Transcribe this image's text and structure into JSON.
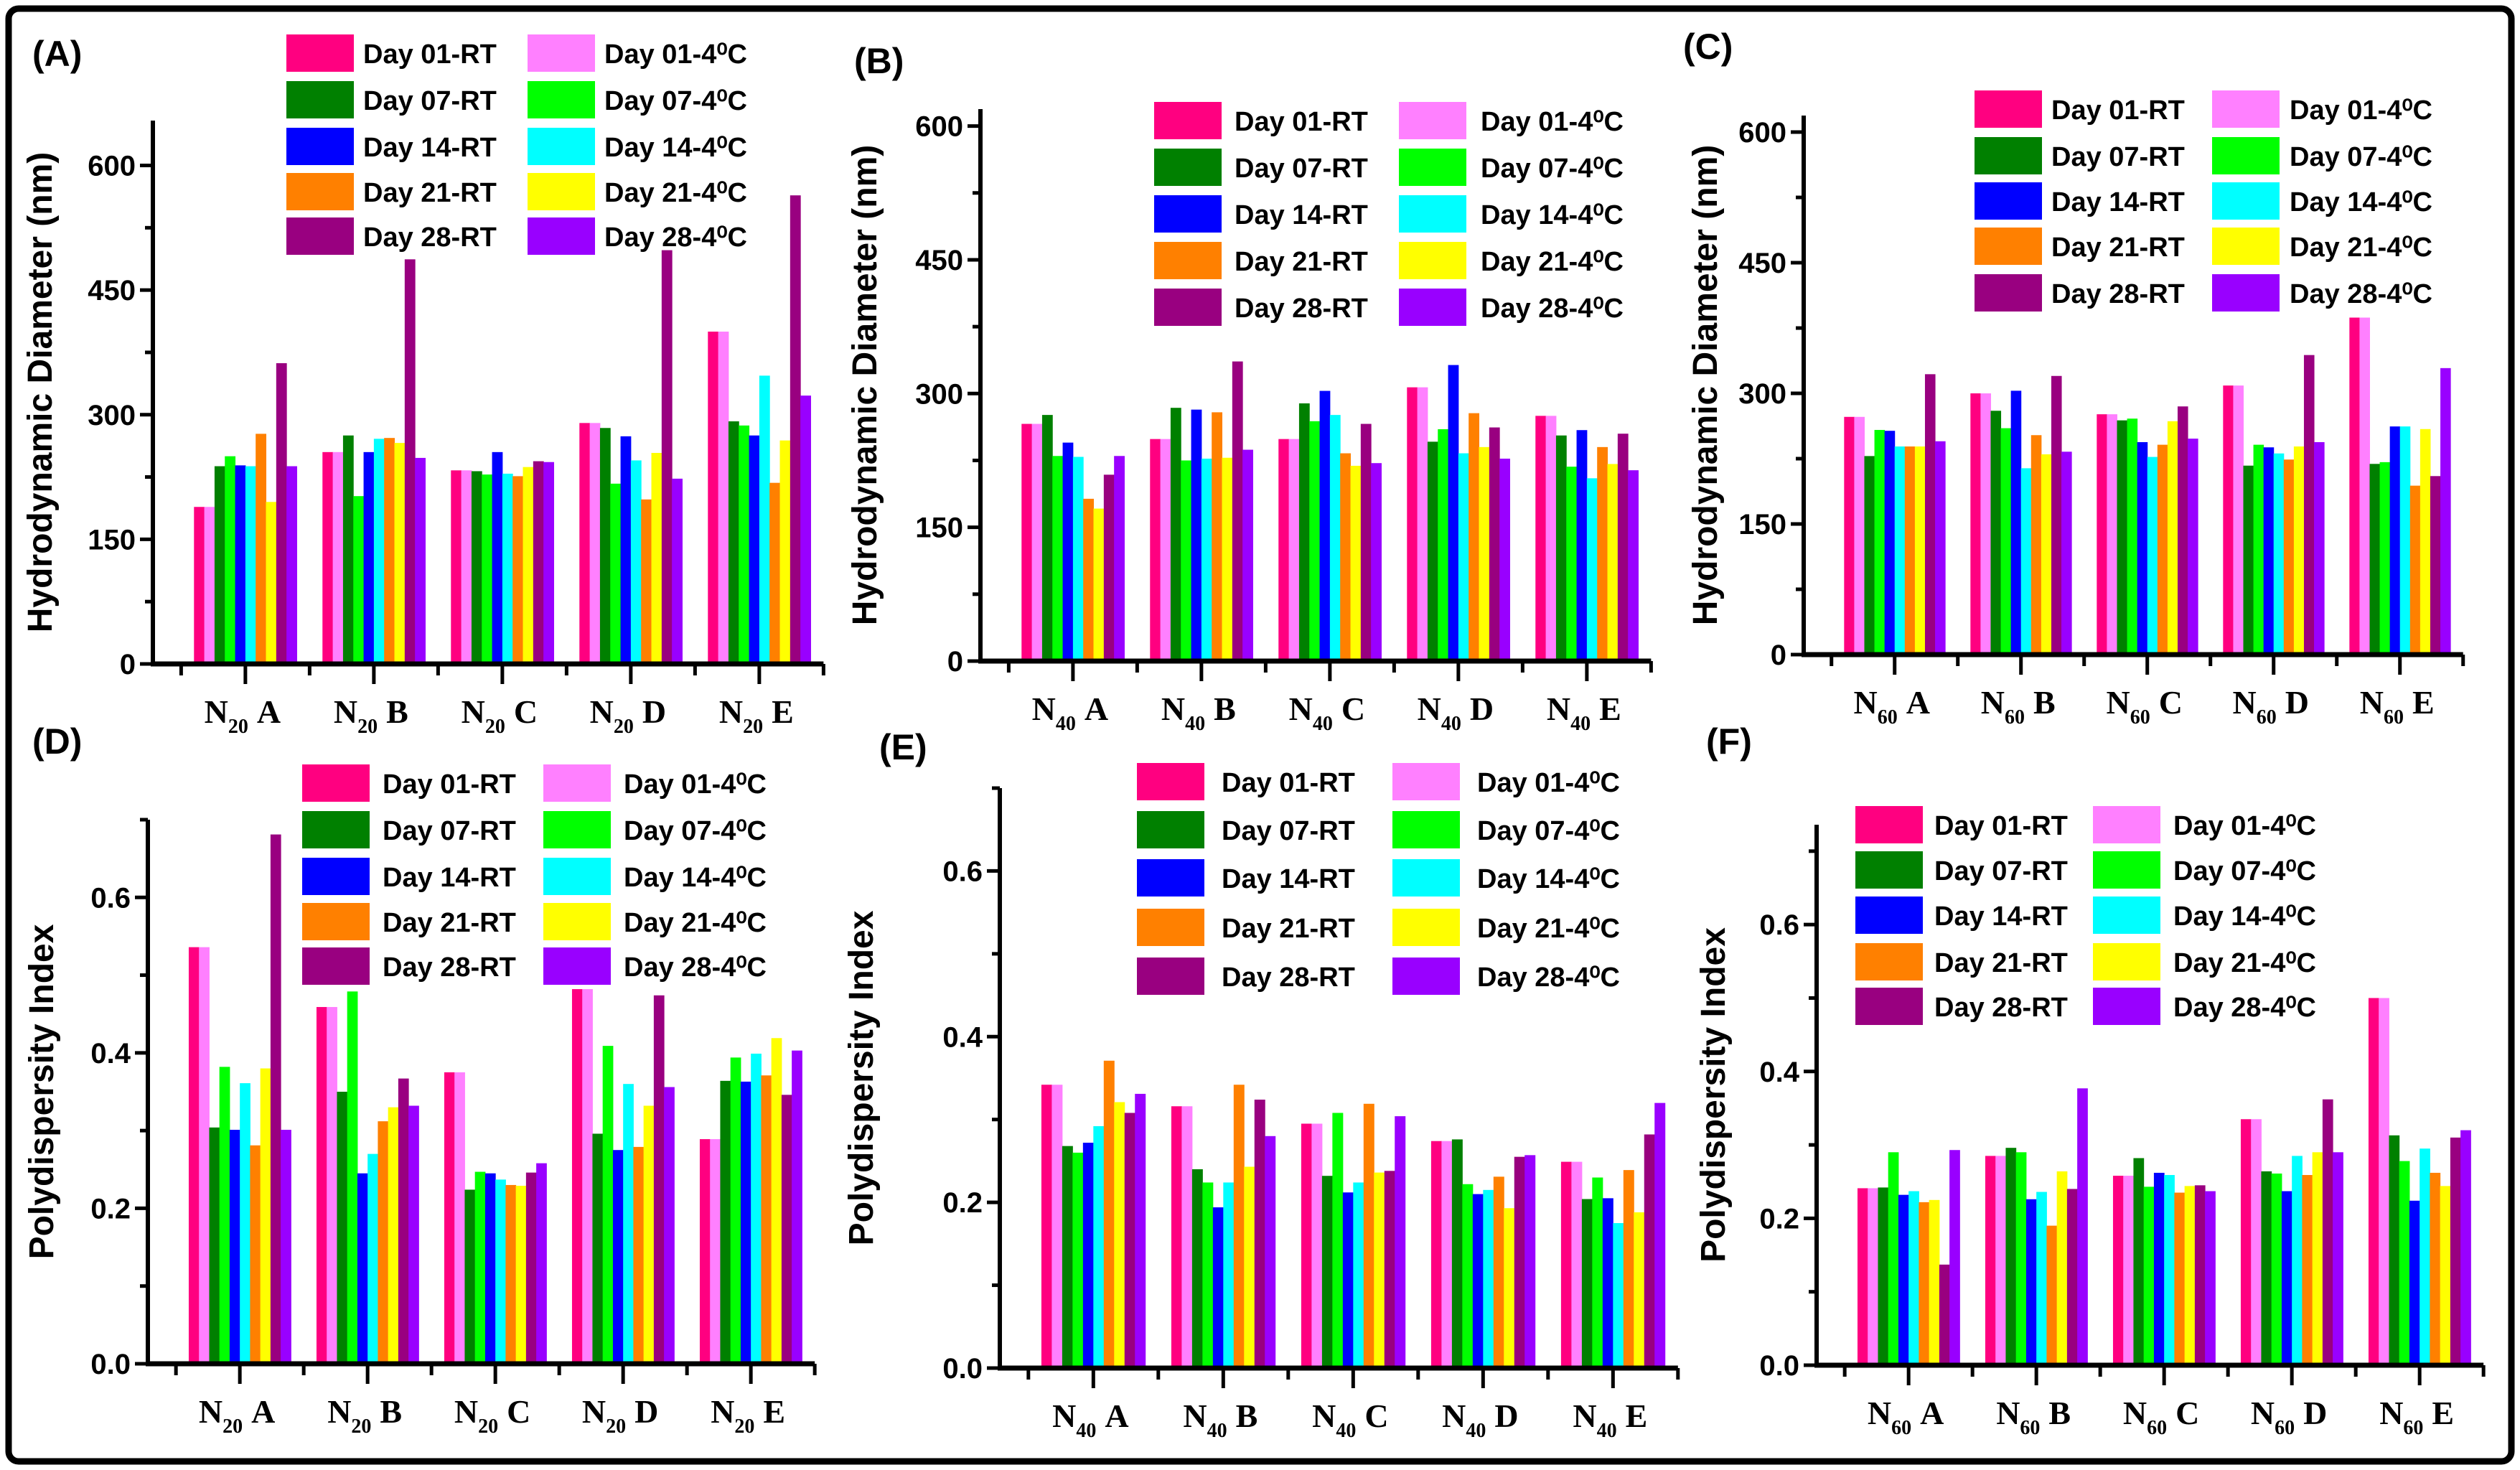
{
  "chart_data": [
    {
      "panel": "(A)",
      "type": "bar",
      "ylabel": "Hydrodynamic Diameter (nm)",
      "xlabel": "",
      "x_prefix": "N",
      "x_sub": "20",
      "categories": [
        "A",
        "B",
        "C",
        "D",
        "E"
      ],
      "yticks": [
        "0",
        "150",
        "300",
        "450",
        "600"
      ],
      "ylim": [
        0,
        654
      ],
      "series": [
        {
          "name": "Day 01-RT",
          "color": "#ff0080",
          "values": [
            189,
            255,
            233,
            290,
            400
          ]
        },
        {
          "name": "Day 01-4⁰C",
          "color": "#ff80ff",
          "values": [
            189,
            255,
            233,
            290,
            400
          ]
        },
        {
          "name": "Day 07-RT",
          "color": "#008000",
          "values": [
            238,
            275,
            232,
            284,
            292
          ]
        },
        {
          "name": "Day 07-4⁰C",
          "color": "#00ff00",
          "values": [
            250,
            202,
            228,
            217,
            287
          ]
        },
        {
          "name": "Day 14-RT",
          "color": "#0000ff",
          "values": [
            239,
            255,
            255,
            274,
            275
          ]
        },
        {
          "name": "Day 14-4⁰C",
          "color": "#00ffff",
          "values": [
            238,
            271,
            229,
            245,
            347
          ]
        },
        {
          "name": "Day 21-RT",
          "color": "#ff8000",
          "values": [
            277,
            272,
            226,
            198,
            218
          ]
        },
        {
          "name": "Day 21-4⁰C",
          "color": "#ffff00",
          "values": [
            195,
            266,
            237,
            254,
            269
          ]
        },
        {
          "name": "Day 28-RT",
          "color": "#990080",
          "values": [
            362,
            487,
            244,
            498,
            564
          ]
        },
        {
          "name": "Day 28-4⁰C",
          "color": "#9900ff",
          "values": [
            238,
            248,
            243,
            223,
            323
          ]
        }
      ]
    },
    {
      "panel": "(B)",
      "type": "bar",
      "ylabel": "Hydrodynamic Diameter (nm)",
      "xlabel": "",
      "x_prefix": "N",
      "x_sub": "40",
      "categories": [
        "A",
        "B",
        "C",
        "D",
        "E"
      ],
      "yticks": [
        "0",
        "150",
        "300",
        "450",
        "600"
      ],
      "ylim": [
        0,
        619
      ],
      "series": [
        {
          "name": "Day 01-RT",
          "color": "#ff0080",
          "values": [
            266,
            249,
            249,
            307,
            275
          ]
        },
        {
          "name": "Day 01-4⁰C",
          "color": "#ff80ff",
          "values": [
            266,
            249,
            249,
            307,
            275
          ]
        },
        {
          "name": "Day 07-RT",
          "color": "#008000",
          "values": [
            276,
            284,
            289,
            246,
            253
          ]
        },
        {
          "name": "Day 07-4⁰C",
          "color": "#00ff00",
          "values": [
            230,
            225,
            269,
            260,
            218
          ]
        },
        {
          "name": "Day 14-RT",
          "color": "#0000ff",
          "values": [
            245,
            282,
            303,
            332,
            259
          ]
        },
        {
          "name": "Day 14-4⁰C",
          "color": "#00ffff",
          "values": [
            229,
            227,
            276,
            233,
            205
          ]
        },
        {
          "name": "Day 21-RT",
          "color": "#ff8000",
          "values": [
            182,
            279,
            233,
            278,
            240
          ]
        },
        {
          "name": "Day 21-4⁰C",
          "color": "#ffff00",
          "values": [
            171,
            228,
            219,
            240,
            221
          ]
        },
        {
          "name": "Day 28-RT",
          "color": "#990080",
          "values": [
            209,
            336,
            266,
            262,
            255
          ]
        },
        {
          "name": "Day 28-4⁰C",
          "color": "#9900ff",
          "values": [
            230,
            237,
            222,
            227,
            214
          ]
        }
      ]
    },
    {
      "panel": "(C)",
      "type": "bar",
      "ylabel": "Hydrodynamic Diameter (nm)",
      "xlabel": "",
      "x_prefix": "N",
      "x_sub": "60",
      "categories": [
        "A",
        "B",
        "C",
        "D",
        "E"
      ],
      "yticks": [
        "0",
        "150",
        "300",
        "450",
        "600"
      ],
      "ylim": [
        0,
        619
      ],
      "series": [
        {
          "name": "Day 01-RT",
          "color": "#ff0080",
          "values": [
            273,
            300,
            276,
            309,
            387
          ]
        },
        {
          "name": "Day 01-4⁰C",
          "color": "#ff80ff",
          "values": [
            273,
            300,
            276,
            309,
            387
          ]
        },
        {
          "name": "Day 07-RT",
          "color": "#008000",
          "values": [
            228,
            280,
            269,
            217,
            219
          ]
        },
        {
          "name": "Day 07-4⁰C",
          "color": "#00ff00",
          "values": [
            258,
            260,
            271,
            241,
            221
          ]
        },
        {
          "name": "Day 14-RT",
          "color": "#0000ff",
          "values": [
            257,
            303,
            244,
            238,
            262
          ]
        },
        {
          "name": "Day 14-4⁰C",
          "color": "#00ffff",
          "values": [
            239,
            214,
            227,
            231,
            262
          ]
        },
        {
          "name": "Day 21-RT",
          "color": "#ff8000",
          "values": [
            239,
            252,
            241,
            224,
            194
          ]
        },
        {
          "name": "Day 21-4⁰C",
          "color": "#ffff00",
          "values": [
            239,
            230,
            268,
            239,
            259
          ]
        },
        {
          "name": "Day 28-RT",
          "color": "#990080",
          "values": [
            322,
            320,
            285,
            344,
            205
          ]
        },
        {
          "name": "Day 28-4⁰C",
          "color": "#9900ff",
          "values": [
            245,
            233,
            248,
            244,
            329
          ]
        }
      ]
    },
    {
      "panel": "(D)",
      "type": "bar",
      "ylabel": "Polydispersity Index",
      "xlabel": "",
      "x_prefix": "N",
      "x_sub": "20",
      "categories": [
        "A",
        "B",
        "C",
        "D",
        "E"
      ],
      "yticks": [
        "0.0",
        "0.2",
        "0.4",
        "0.6"
      ],
      "ylim": [
        0,
        0.7
      ],
      "series": [
        {
          "name": "Day 01-RT",
          "color": "#ff0080",
          "values": [
            0.536,
            0.459,
            0.375,
            0.482,
            0.289
          ]
        },
        {
          "name": "Day 01-4⁰C",
          "color": "#ff80ff",
          "values": [
            0.536,
            0.459,
            0.375,
            0.482,
            0.289
          ]
        },
        {
          "name": "Day 07-RT",
          "color": "#008000",
          "values": [
            0.304,
            0.35,
            0.224,
            0.296,
            0.364
          ]
        },
        {
          "name": "Day 07-4⁰C",
          "color": "#00ff00",
          "values": [
            0.382,
            0.479,
            0.247,
            0.409,
            0.394
          ]
        },
        {
          "name": "Day 14-RT",
          "color": "#0000ff",
          "values": [
            0.301,
            0.245,
            0.245,
            0.275,
            0.363
          ]
        },
        {
          "name": "Day 14-4⁰C",
          "color": "#00ffff",
          "values": [
            0.361,
            0.27,
            0.237,
            0.36,
            0.399
          ]
        },
        {
          "name": "Day 21-RT",
          "color": "#ff8000",
          "values": [
            0.281,
            0.312,
            0.23,
            0.279,
            0.371
          ]
        },
        {
          "name": "Day 21-4⁰C",
          "color": "#ffff00",
          "values": [
            0.38,
            0.33,
            0.229,
            0.332,
            0.419
          ]
        },
        {
          "name": "Day 28-RT",
          "color": "#990080",
          "values": [
            0.681,
            0.367,
            0.246,
            0.474,
            0.346
          ]
        },
        {
          "name": "Day 28-4⁰C",
          "color": "#9900ff",
          "values": [
            0.301,
            0.332,
            0.258,
            0.356,
            0.403
          ]
        }
      ]
    },
    {
      "panel": "(E)",
      "type": "bar",
      "ylabel": "Polydispersity Index",
      "xlabel": "",
      "x_prefix": "N",
      "x_sub": "40",
      "categories": [
        "A",
        "B",
        "C",
        "D",
        "E"
      ],
      "yticks": [
        "0.0",
        "0.2",
        "0.4",
        "0.6"
      ],
      "ylim": [
        0,
        0.7
      ],
      "series": [
        {
          "name": "Day 01-RT",
          "color": "#ff0080",
          "values": [
            0.342,
            0.316,
            0.295,
            0.274,
            0.249
          ]
        },
        {
          "name": "Day 01-4⁰C",
          "color": "#ff80ff",
          "values": [
            0.342,
            0.316,
            0.295,
            0.274,
            0.249
          ]
        },
        {
          "name": "Day 07-RT",
          "color": "#008000",
          "values": [
            0.268,
            0.24,
            0.232,
            0.276,
            0.204
          ]
        },
        {
          "name": "Day 07-4⁰C",
          "color": "#00ff00",
          "values": [
            0.26,
            0.224,
            0.308,
            0.222,
            0.23
          ]
        },
        {
          "name": "Day 14-RT",
          "color": "#0000ff",
          "values": [
            0.272,
            0.194,
            0.212,
            0.21,
            0.205
          ]
        },
        {
          "name": "Day 14-4⁰C",
          "color": "#00ffff",
          "values": [
            0.292,
            0.224,
            0.224,
            0.215,
            0.175
          ]
        },
        {
          "name": "Day 21-RT",
          "color": "#ff8000",
          "values": [
            0.371,
            0.342,
            0.319,
            0.231,
            0.239
          ]
        },
        {
          "name": "Day 21-4⁰C",
          "color": "#ffff00",
          "values": [
            0.321,
            0.243,
            0.236,
            0.193,
            0.188
          ]
        },
        {
          "name": "Day 28-RT",
          "color": "#990080",
          "values": [
            0.308,
            0.324,
            0.238,
            0.255,
            0.282
          ]
        },
        {
          "name": "Day 28-4⁰C",
          "color": "#9900ff",
          "values": [
            0.331,
            0.28,
            0.304,
            0.257,
            0.32
          ]
        }
      ]
    },
    {
      "panel": "(F)",
      "type": "bar",
      "ylabel": "Polydispersity Index",
      "xlabel": "",
      "x_prefix": "N",
      "x_sub": "60",
      "categories": [
        "A",
        "B",
        "C",
        "D",
        "E"
      ],
      "yticks": [
        "0.0",
        "0.2",
        "0.4",
        "0.6"
      ],
      "ylim": [
        0,
        0.736
      ],
      "series": [
        {
          "name": "Day 01-RT",
          "color": "#ff0080",
          "values": [
            0.241,
            0.285,
            0.258,
            0.335,
            0.5
          ]
        },
        {
          "name": "Day 01-4⁰C",
          "color": "#ff80ff",
          "values": [
            0.241,
            0.285,
            0.258,
            0.335,
            0.5
          ]
        },
        {
          "name": "Day 07-RT",
          "color": "#008000",
          "values": [
            0.242,
            0.296,
            0.282,
            0.264,
            0.313
          ]
        },
        {
          "name": "Day 07-4⁰C",
          "color": "#00ff00",
          "values": [
            0.29,
            0.29,
            0.243,
            0.261,
            0.278
          ]
        },
        {
          "name": "Day 14-RT",
          "color": "#0000ff",
          "values": [
            0.232,
            0.226,
            0.262,
            0.237,
            0.224
          ]
        },
        {
          "name": "Day 14-4⁰C",
          "color": "#00ffff",
          "values": [
            0.237,
            0.236,
            0.259,
            0.285,
            0.295
          ]
        },
        {
          "name": "Day 21-RT",
          "color": "#ff8000",
          "values": [
            0.222,
            0.19,
            0.235,
            0.259,
            0.262
          ]
        },
        {
          "name": "Day 21-4⁰C",
          "color": "#ffff00",
          "values": [
            0.225,
            0.264,
            0.244,
            0.29,
            0.244
          ]
        },
        {
          "name": "Day 28-RT",
          "color": "#990080",
          "values": [
            0.137,
            0.24,
            0.245,
            0.362,
            0.31
          ]
        },
        {
          "name": "Day 28-4⁰C",
          "color": "#9900ff",
          "values": [
            0.293,
            0.377,
            0.237,
            0.29,
            0.32
          ]
        }
      ]
    }
  ]
}
